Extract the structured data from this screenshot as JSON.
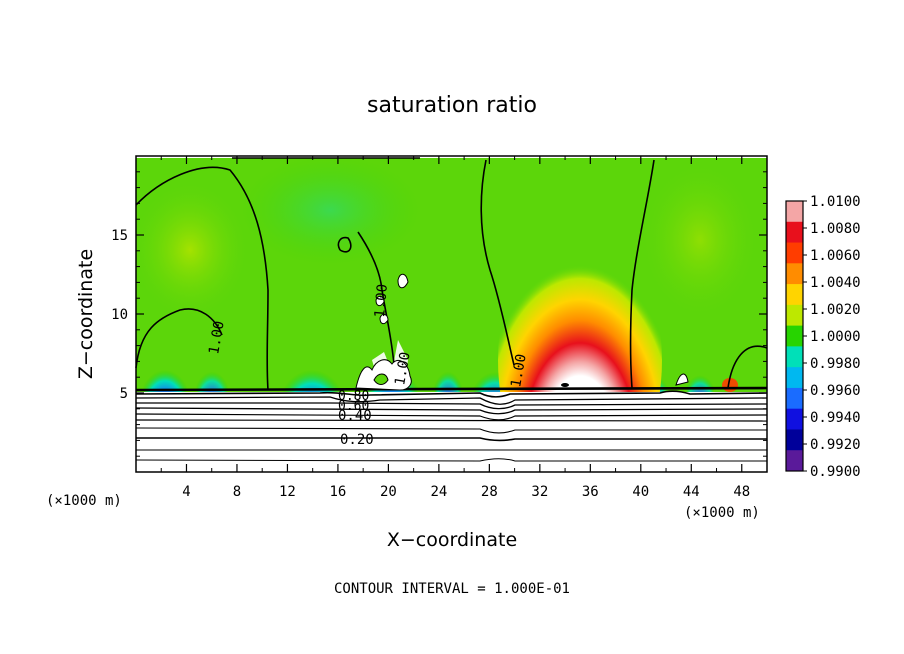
{
  "chart_data": {
    "type": "heatmap",
    "title": "saturation ratio",
    "xlabel": "X−coordinate",
    "ylabel": "Z−coordinate",
    "x_unit": "(×1000 m)",
    "y_unit": "(×1000 m)",
    "xlim": [
      0,
      50
    ],
    "ylim": [
      0,
      20
    ],
    "x_ticks": [
      4,
      8,
      12,
      16,
      20,
      24,
      28,
      32,
      36,
      40,
      44,
      48
    ],
    "y_ticks": [
      5,
      10,
      15
    ],
    "colorbar": {
      "labels": [
        "1.0100",
        "1.0080",
        "1.0060",
        "1.0040",
        "1.0020",
        "1.0000",
        "0.9980",
        "0.9960",
        "0.9940",
        "0.9920",
        "0.9900"
      ],
      "colors": [
        "#f4a6a6",
        "#e8101c",
        "#ff3d00",
        "#ff8c00",
        "#ffd400",
        "#bde800",
        "#27d400",
        "#00e0b8",
        "#00b8f0",
        "#1a6cff",
        "#1010e0",
        "#00009a",
        "#5a1a9a"
      ]
    },
    "contour_labels": [
      "1.00",
      "1.00",
      "1.00",
      "1.00",
      "0.80",
      "0.60",
      "0.40",
      "0.20"
    ],
    "note": "CONTOUR INTERVAL = 1.000E-01"
  }
}
